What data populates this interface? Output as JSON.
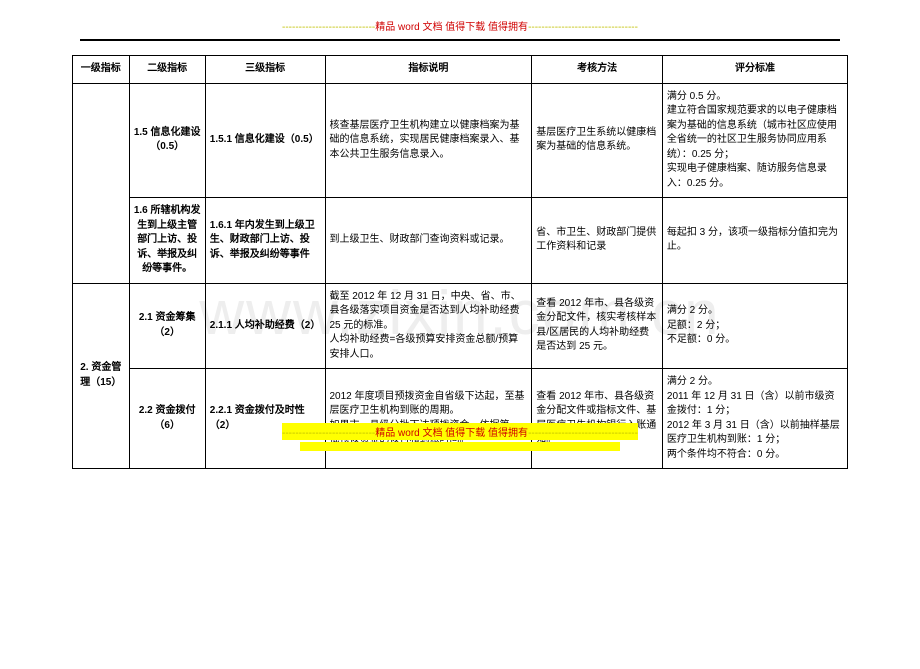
{
  "header": {
    "dashes": "----------------------------",
    "text": "精品 word 文档 值得下载 值得拥有",
    "dashes_after": "---------------------------------"
  },
  "footer": {
    "dashes": "----------------------------",
    "text": "精品 word 文档 值得下载 值得拥有",
    "dashes_after": "---------------------------------"
  },
  "watermark": "www.zixin.com.cn",
  "columns": {
    "c1": "一级指标",
    "c2": "二级指标",
    "c3": "三级指标",
    "c4": "指标说明",
    "c5": "考核方法",
    "c6": "评分标准"
  },
  "rows": {
    "r1": {
      "lvl2": "1.5 信息化建设（0.5）",
      "lvl3": "1.5.1 信息化建设（0.5）",
      "desc": "核查基层医疗卫生机构建立以健康档案为基础的信息系统，实现居民健康档案录入、基本公共卫生服务信息录入。",
      "method": "基层医疗卫生系统以健康档案为基础的信息系统。",
      "score": "满分 0.5 分。\n建立符合国家规范要求的以电子健康档案为基础的信息系统（城市社区应使用全省统一的社区卫生服务协同应用系统）：0.25 分；\n实现电子健康档案、随访服务信息录入：0.25 分。"
    },
    "r2": {
      "lvl2": "1.6 所辖机构发生到上级主管部门上访、投诉、举报及纠纷等事件。",
      "lvl3": "1.6.1 年内发生到上级卫生、财政部门上访、投诉、举报及纠纷等事件",
      "desc": "到上级卫生、财政部门查询资料或记录。",
      "method": "省、市卫生、财政部门提供工作资料和记录",
      "score": "每起扣 3 分，该项一级指标分值扣完为止。"
    },
    "r3": {
      "lvl1": "2. 资金管理（15）",
      "lvl2": "2.1 资金筹集（2）",
      "lvl3": "2.1.1 人均补助经费（2）",
      "desc": "截至 2012 年 12 月 31 日，中央、省、市、县各级落实项目资金是否达到人均补助经费 25 元的标准。\n人均补助经费=各级预算安排资金总额/预算安排人口。",
      "method": "查看 2012 年市、县各级资金分配文件，核实考核样本县/区居民的人均补助经费是否达到 25 元。",
      "score": "满分 2 分。\n足额：2 分；\n不足额：0 分。"
    },
    "r4": {
      "lvl2": "2.2 资金拨付（6）",
      "lvl3": "2.2.1 资金拨付及时性（2）",
      "desc": "2012 年度项目预拨资金自省级下达起，至基层医疗卫生机构到账的周期。\n如果市、县级分批下达预拨资金，依据第一批预拨资金的拨付和到账时间。",
      "method": "查看 2012 年市、县各级资金分配文件或指标文件、基层医疗卫生机构银行入账通知。",
      "score": "满分 2 分。\n2011 年 12 月 31 日（含）以前市级资金拨付：1 分；\n2012 年 3 月 31 日（含）以前抽样基层医疗卫生机构到账：1 分；\n两个条件均不符合：0 分。"
    }
  }
}
